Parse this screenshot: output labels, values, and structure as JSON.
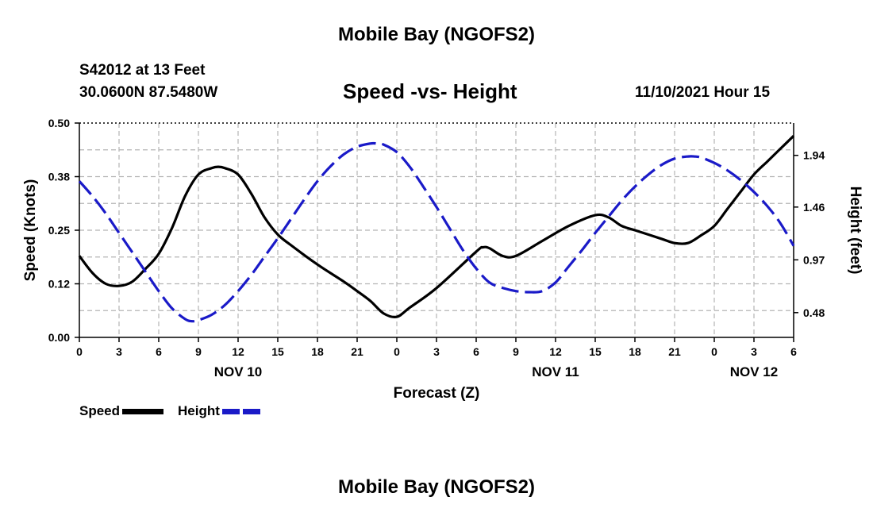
{
  "page": {
    "title_top": "Mobile Bay (NGOFS2)",
    "title_bottom": "Mobile Bay (NGOFS2)",
    "station": "S42012 at 13 Feet",
    "coords": "30.0600N  87.5480W",
    "subtitle": "Speed -vs- Height",
    "datetime": "11/10/2021 Hour 15"
  },
  "colors": {
    "speed": "#000000",
    "height": "#1a1ac8",
    "grid": "#b4b4b4"
  },
  "chart_data": {
    "type": "line",
    "xlabel": "Forecast (Z)",
    "ylabel": "Speed (Knots)",
    "y2label": "Height (feet)",
    "xlim": [
      0,
      54
    ],
    "ylim": [
      0,
      0.5
    ],
    "y2lim": [
      0.25,
      2.24
    ],
    "x_ticks": [
      0,
      3,
      6,
      9,
      12,
      15,
      18,
      21,
      24,
      27,
      30,
      33,
      36,
      39,
      42,
      45,
      48,
      51,
      54
    ],
    "x_tick_labels": [
      "0",
      "3",
      "6",
      "9",
      "12",
      "15",
      "18",
      "21",
      "0",
      "3",
      "6",
      "9",
      "12",
      "15",
      "18",
      "21",
      "0",
      "3",
      "6"
    ],
    "day_labels": [
      {
        "x": 12,
        "label": "NOV 10"
      },
      {
        "x": 36,
        "label": "NOV 11"
      },
      {
        "x": 51,
        "label": "NOV 12"
      }
    ],
    "y_ticks": [
      0,
      0.125,
      0.25,
      0.375,
      0.5
    ],
    "y_tick_labels": [
      "0.00",
      "0.12",
      "0.25",
      "0.38",
      "0.50"
    ],
    "y2_ticks": [
      0.48,
      0.97,
      1.46,
      1.94
    ],
    "y2_tick_labels": [
      "0.48",
      "0.97",
      "1.46",
      "1.94"
    ],
    "grid": true,
    "legend_position": "bottom-left",
    "series": [
      {
        "name": "Speed",
        "axis": "left",
        "style": "solid",
        "x": [
          0,
          1,
          2,
          3,
          4,
          5,
          6,
          7,
          8,
          9,
          10,
          10.5,
          11,
          12,
          13,
          14,
          15,
          16,
          18,
          20,
          21,
          22,
          23,
          24,
          25,
          27,
          30,
          30.5,
          31,
          32,
          33,
          35,
          37,
          39,
          40,
          41,
          42,
          44,
          45,
          46,
          47,
          48,
          49,
          50,
          51,
          52,
          53,
          54
        ],
        "y": [
          0.19,
          0.15,
          0.125,
          0.12,
          0.13,
          0.16,
          0.195,
          0.255,
          0.33,
          0.38,
          0.395,
          0.398,
          0.395,
          0.38,
          0.335,
          0.28,
          0.24,
          0.215,
          0.17,
          0.13,
          0.108,
          0.085,
          0.056,
          0.048,
          0.07,
          0.115,
          0.2,
          0.21,
          0.208,
          0.19,
          0.19,
          0.225,
          0.26,
          0.285,
          0.28,
          0.26,
          0.25,
          0.23,
          0.22,
          0.22,
          0.238,
          0.26,
          0.3,
          0.34,
          0.38,
          0.41,
          0.44,
          0.47
        ]
      },
      {
        "name": "Height",
        "axis": "right",
        "style": "dashed",
        "x": [
          0,
          1,
          2,
          3,
          4,
          5,
          6,
          7,
          8,
          8.5,
          9,
          10,
          11,
          12,
          13,
          14,
          15,
          16,
          17,
          18,
          19,
          20,
          21,
          22,
          22.5,
          23,
          24,
          25,
          26,
          27,
          28,
          29,
          30,
          31,
          32,
          33,
          34,
          35,
          36,
          37,
          38,
          39,
          40,
          41,
          42,
          43,
          44,
          45,
          46,
          46.5,
          47,
          48,
          49,
          50,
          51,
          52,
          53,
          54
        ],
        "y": [
          1.7,
          1.56,
          1.4,
          1.22,
          1.04,
          0.86,
          0.68,
          0.52,
          0.42,
          0.4,
          0.41,
          0.46,
          0.55,
          0.68,
          0.83,
          1.0,
          1.17,
          1.35,
          1.53,
          1.7,
          1.84,
          1.95,
          2.02,
          2.05,
          2.05,
          2.04,
          1.97,
          1.83,
          1.65,
          1.46,
          1.26,
          1.06,
          0.89,
          0.76,
          0.71,
          0.68,
          0.67,
          0.68,
          0.76,
          0.91,
          1.06,
          1.22,
          1.37,
          1.52,
          1.65,
          1.76,
          1.85,
          1.91,
          1.93,
          1.93,
          1.92,
          1.87,
          1.8,
          1.71,
          1.6,
          1.47,
          1.31,
          1.1
        ]
      }
    ]
  }
}
